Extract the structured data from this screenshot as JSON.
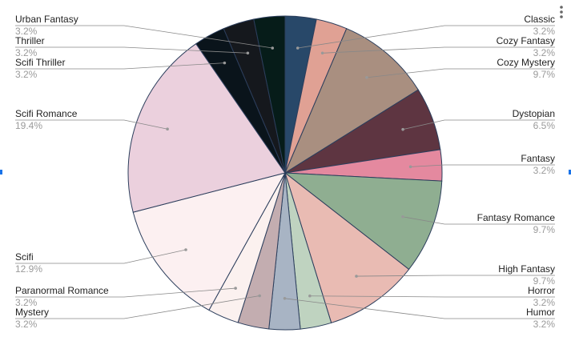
{
  "chart_data": {
    "type": "pie",
    "categories": [
      "Classic",
      "Cozy Fantasy",
      "Cozy Mystery",
      "Dystopian",
      "Fantasy",
      "Fantasy Romance",
      "High Fantasy",
      "Horror",
      "Humor",
      "Mystery",
      "Paranormal Romance",
      "Scifi",
      "Scifi Romance",
      "Scifi Thriller",
      "Thriller",
      "Urban Fantasy"
    ],
    "values": [
      3.2,
      3.2,
      9.7,
      6.5,
      3.2,
      9.7,
      9.7,
      3.2,
      3.2,
      3.2,
      3.2,
      12.9,
      19.4,
      3.2,
      3.2,
      3.2
    ],
    "value_labels": [
      "3.2%",
      "3.2%",
      "9.7%",
      "6.5%",
      "3.2%",
      "9.7%",
      "9.7%",
      "3.2%",
      "3.2%",
      "3.2%",
      "3.2%",
      "12.9%",
      "19.4%",
      "3.2%",
      "3.2%",
      "3.2%"
    ],
    "colors": [
      "#284869",
      "#e0a194",
      "#a98f80",
      "#5e3541",
      "#e4899f",
      "#8fae91",
      "#e9bbb3",
      "#bfd3c0",
      "#a8b4c4",
      "#c3adb0",
      "#fbf1ef",
      "#fcf0f1",
      "#ebd0dd",
      "#0a141b",
      "#15181d",
      "#061c19"
    ]
  }
}
